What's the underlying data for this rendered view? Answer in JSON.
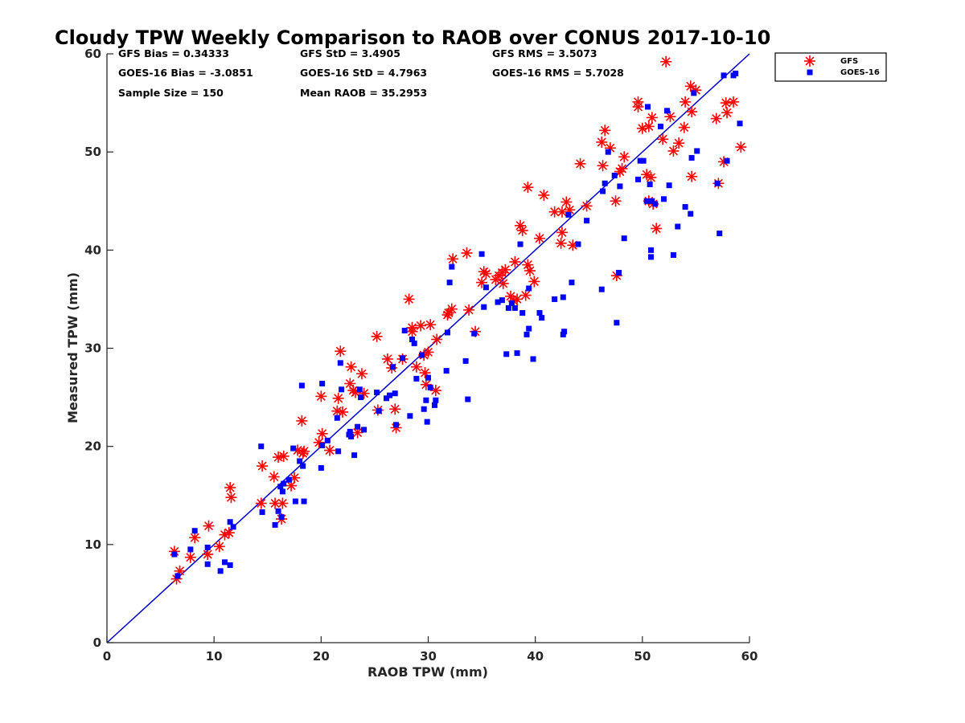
{
  "chart_data": {
    "type": "scatter",
    "title": "Cloudy TPW Weekly Comparison to RAOB over CONUS 2017-10-10",
    "xlabel": "RAOB TPW (mm)",
    "ylabel": "Measured TPW (mm)",
    "xlim": [
      0,
      60
    ],
    "ylim": [
      0,
      60
    ],
    "xticks": [
      "0",
      "10",
      "20",
      "30",
      "40",
      "50",
      "60"
    ],
    "yticks": [
      "0",
      "10",
      "20",
      "30",
      "40",
      "50",
      "60"
    ],
    "grid": false,
    "legend_position": "top-right, outside plot",
    "stats": [
      {
        "id": "gfs-bias",
        "text": "GFS Bias = 0.34333"
      },
      {
        "id": "gfs-std",
        "text": "GFS StD = 3.4905"
      },
      {
        "id": "gfs-rms",
        "text": "GFS RMS = 3.5073"
      },
      {
        "id": "goes-bias",
        "text": "GOES-16 Bias = -3.0851"
      },
      {
        "id": "goes-std",
        "text": "GOES-16 StD = 4.7963"
      },
      {
        "id": "goes-rms",
        "text": "GOES-16 RMS = 5.7028"
      },
      {
        "id": "sample-size",
        "text": "Sample Size = 150"
      },
      {
        "id": "mean-raob",
        "text": "Mean RAOB = 35.2953"
      }
    ],
    "reference_line": {
      "x": [
        0,
        60
      ],
      "y": [
        0,
        60
      ],
      "color": "#0000cc"
    },
    "series": [
      {
        "name": "GFS",
        "marker": "asterisk",
        "color": "#ff0000",
        "points": [
          [
            6.3,
            9.3
          ],
          [
            6.5,
            6.5
          ],
          [
            6.8,
            7.3
          ],
          [
            7.8,
            8.7
          ],
          [
            8.2,
            10.7
          ],
          [
            9.4,
            9.0
          ],
          [
            9.5,
            11.9
          ],
          [
            10.5,
            9.8
          ],
          [
            11.0,
            11.0
          ],
          [
            11.4,
            11.2
          ],
          [
            11.5,
            15.8
          ],
          [
            11.6,
            14.8
          ],
          [
            14.4,
            14.2
          ],
          [
            14.5,
            18.0
          ],
          [
            15.6,
            16.9
          ],
          [
            15.7,
            14.2
          ],
          [
            16.0,
            18.9
          ],
          [
            16.3,
            12.6
          ],
          [
            16.4,
            14.2
          ],
          [
            16.5,
            19.0
          ],
          [
            17.2,
            16.0
          ],
          [
            17.5,
            16.8
          ],
          [
            17.8,
            19.6
          ],
          [
            18.2,
            22.6
          ],
          [
            18.3,
            19.3
          ],
          [
            18.4,
            19.5
          ],
          [
            19.8,
            20.4
          ],
          [
            20.0,
            25.1
          ],
          [
            20.1,
            21.3
          ],
          [
            20.8,
            19.6
          ],
          [
            21.5,
            23.6
          ],
          [
            21.6,
            24.9
          ],
          [
            21.8,
            29.7
          ],
          [
            22.0,
            23.5
          ],
          [
            22.7,
            26.4
          ],
          [
            22.8,
            28.1
          ],
          [
            23.0,
            25.7
          ],
          [
            23.2,
            25.5
          ],
          [
            23.4,
            21.4
          ],
          [
            23.8,
            27.4
          ],
          [
            24.0,
            25.4
          ],
          [
            25.2,
            31.2
          ],
          [
            25.3,
            23.7
          ],
          [
            26.2,
            28.9
          ],
          [
            26.6,
            28.0
          ],
          [
            26.9,
            23.8
          ],
          [
            27.0,
            21.9
          ],
          [
            27.6,
            28.9
          ],
          [
            28.2,
            35.0
          ],
          [
            28.5,
            31.7
          ],
          [
            28.5,
            32.1
          ],
          [
            28.9,
            28.1
          ],
          [
            29.3,
            32.3
          ],
          [
            29.6,
            29.3
          ],
          [
            29.7,
            27.5
          ],
          [
            29.8,
            26.3
          ],
          [
            30.0,
            29.6
          ],
          [
            30.2,
            32.4
          ],
          [
            30.7,
            25.7
          ],
          [
            30.8,
            30.9
          ],
          [
            31.8,
            33.4
          ],
          [
            31.9,
            33.6
          ],
          [
            32.2,
            34.0
          ],
          [
            32.3,
            39.1
          ],
          [
            33.6,
            39.7
          ],
          [
            33.8,
            33.9
          ],
          [
            34.4,
            31.7
          ],
          [
            35.0,
            36.7
          ],
          [
            35.2,
            37.8
          ],
          [
            35.4,
            37.6
          ],
          [
            36.3,
            37.0
          ],
          [
            36.6,
            37.4
          ],
          [
            36.9,
            37.7
          ],
          [
            37.0,
            36.6
          ],
          [
            37.2,
            38.0
          ],
          [
            37.7,
            35.3
          ],
          [
            38.0,
            34.8
          ],
          [
            38.1,
            38.8
          ],
          [
            38.3,
            35.0
          ],
          [
            38.6,
            42.5
          ],
          [
            38.8,
            42.0
          ],
          [
            39.1,
            35.4
          ],
          [
            39.3,
            46.4
          ],
          [
            39.3,
            38.5
          ],
          [
            39.5,
            37.9
          ],
          [
            39.9,
            36.8
          ],
          [
            40.4,
            41.2
          ],
          [
            40.8,
            45.6
          ],
          [
            41.8,
            43.9
          ],
          [
            42.4,
            40.7
          ],
          [
            42.5,
            43.9
          ],
          [
            42.5,
            41.8
          ],
          [
            42.9,
            44.9
          ],
          [
            43.2,
            44.1
          ],
          [
            43.5,
            40.5
          ],
          [
            44.2,
            48.8
          ],
          [
            44.8,
            44.5
          ],
          [
            46.2,
            51.0
          ],
          [
            46.3,
            48.6
          ],
          [
            46.5,
            52.2
          ],
          [
            47.0,
            50.4
          ],
          [
            47.5,
            45.0
          ],
          [
            47.6,
            37.4
          ],
          [
            47.9,
            48.0
          ],
          [
            48.1,
            48.3
          ],
          [
            48.3,
            49.5
          ],
          [
            49.6,
            55.1
          ],
          [
            49.6,
            54.6
          ],
          [
            50.0,
            52.4
          ],
          [
            50.4,
            47.7
          ],
          [
            50.6,
            45.0
          ],
          [
            50.6,
            52.6
          ],
          [
            50.8,
            47.4
          ],
          [
            50.9,
            53.5
          ],
          [
            51.0,
            44.7
          ],
          [
            51.3,
            42.2
          ],
          [
            51.9,
            51.3
          ],
          [
            52.2,
            59.2
          ],
          [
            52.6,
            53.6
          ],
          [
            52.9,
            50.1
          ],
          [
            53.4,
            50.9
          ],
          [
            53.9,
            52.5
          ],
          [
            54.0,
            55.1
          ],
          [
            54.5,
            56.7
          ],
          [
            54.6,
            54.1
          ],
          [
            54.6,
            47.5
          ],
          [
            55.0,
            56.3
          ],
          [
            56.9,
            53.4
          ],
          [
            57.1,
            46.8
          ],
          [
            57.6,
            49.0
          ],
          [
            57.8,
            55.0
          ],
          [
            57.9,
            54.0
          ],
          [
            58.5,
            55.1
          ],
          [
            59.2,
            50.5
          ]
        ]
      },
      {
        "name": "GOES-16",
        "marker": "square",
        "color": "#0000ff",
        "points": [
          [
            6.3,
            9.0
          ],
          [
            6.6,
            6.8
          ],
          [
            7.8,
            9.5
          ],
          [
            8.2,
            11.4
          ],
          [
            9.4,
            9.7
          ],
          [
            9.4,
            8.0
          ],
          [
            10.6,
            7.3
          ],
          [
            11.0,
            8.2
          ],
          [
            11.5,
            7.9
          ],
          [
            11.5,
            12.3
          ],
          [
            11.8,
            11.8
          ],
          [
            14.4,
            20.0
          ],
          [
            14.5,
            13.3
          ],
          [
            15.7,
            12.0
          ],
          [
            16.0,
            13.4
          ],
          [
            16.2,
            15.9
          ],
          [
            16.3,
            12.8
          ],
          [
            16.4,
            15.4
          ],
          [
            16.5,
            16.2
          ],
          [
            17.0,
            16.6
          ],
          [
            17.4,
            19.8
          ],
          [
            17.6,
            14.4
          ],
          [
            18.0,
            18.5
          ],
          [
            18.2,
            26.2
          ],
          [
            18.3,
            18.0
          ],
          [
            18.4,
            14.4
          ],
          [
            20.0,
            17.8
          ],
          [
            20.1,
            26.4
          ],
          [
            20.1,
            20.1
          ],
          [
            20.6,
            20.6
          ],
          [
            21.5,
            22.9
          ],
          [
            21.6,
            19.5
          ],
          [
            21.8,
            28.5
          ],
          [
            21.9,
            25.8
          ],
          [
            22.6,
            21.2
          ],
          [
            22.7,
            21.5
          ],
          [
            22.8,
            21.0
          ],
          [
            23.1,
            19.1
          ],
          [
            23.4,
            22.0
          ],
          [
            23.6,
            25.8
          ],
          [
            23.7,
            25.0
          ],
          [
            24.0,
            21.7
          ],
          [
            25.2,
            25.5
          ],
          [
            25.4,
            23.6
          ],
          [
            26.1,
            24.9
          ],
          [
            26.4,
            25.2
          ],
          [
            26.7,
            28.1
          ],
          [
            26.9,
            25.4
          ],
          [
            27.0,
            22.2
          ],
          [
            27.6,
            29.0
          ],
          [
            27.8,
            31.8
          ],
          [
            28.3,
            23.1
          ],
          [
            28.5,
            30.9
          ],
          [
            28.7,
            30.5
          ],
          [
            28.9,
            26.9
          ],
          [
            29.4,
            29.3
          ],
          [
            29.6,
            23.8
          ],
          [
            29.8,
            24.7
          ],
          [
            29.9,
            22.5
          ],
          [
            30.0,
            27.0
          ],
          [
            30.2,
            26.0
          ],
          [
            30.6,
            24.2
          ],
          [
            30.7,
            24.7
          ],
          [
            31.7,
            27.7
          ],
          [
            31.8,
            31.6
          ],
          [
            32.0,
            36.7
          ],
          [
            32.2,
            38.3
          ],
          [
            33.5,
            28.7
          ],
          [
            33.7,
            24.8
          ],
          [
            34.3,
            31.5
          ],
          [
            35.0,
            39.6
          ],
          [
            35.2,
            34.2
          ],
          [
            35.4,
            36.2
          ],
          [
            36.5,
            34.7
          ],
          [
            36.9,
            34.9
          ],
          [
            37.3,
            29.4
          ],
          [
            37.5,
            34.1
          ],
          [
            37.8,
            34.6
          ],
          [
            38.1,
            34.1
          ],
          [
            38.3,
            29.5
          ],
          [
            38.6,
            40.6
          ],
          [
            38.8,
            33.6
          ],
          [
            39.2,
            31.4
          ],
          [
            39.4,
            32.0
          ],
          [
            39.4,
            36.1
          ],
          [
            39.8,
            28.9
          ],
          [
            40.4,
            33.6
          ],
          [
            40.6,
            33.1
          ],
          [
            41.8,
            35.0
          ],
          [
            42.6,
            35.2
          ],
          [
            42.6,
            31.4
          ],
          [
            42.7,
            31.7
          ],
          [
            43.1,
            43.6
          ],
          [
            43.4,
            36.7
          ],
          [
            44.0,
            40.6
          ],
          [
            44.8,
            43.0
          ],
          [
            46.2,
            36.0
          ],
          [
            46.3,
            46.0
          ],
          [
            46.5,
            46.8
          ],
          [
            46.8,
            50.0
          ],
          [
            47.4,
            47.6
          ],
          [
            47.6,
            32.6
          ],
          [
            47.8,
            37.7
          ],
          [
            47.9,
            46.5
          ],
          [
            48.3,
            41.2
          ],
          [
            49.6,
            47.2
          ],
          [
            49.8,
            49.1
          ],
          [
            50.1,
            49.1
          ],
          [
            50.4,
            45.0
          ],
          [
            50.5,
            54.6
          ],
          [
            50.7,
            46.7
          ],
          [
            50.8,
            40.0
          ],
          [
            50.8,
            39.3
          ],
          [
            50.9,
            45.0
          ],
          [
            51.2,
            44.7
          ],
          [
            51.7,
            52.6
          ],
          [
            52.0,
            45.2
          ],
          [
            52.3,
            54.2
          ],
          [
            52.5,
            46.6
          ],
          [
            52.9,
            39.5
          ],
          [
            53.3,
            42.4
          ],
          [
            54.0,
            44.4
          ],
          [
            54.5,
            43.7
          ],
          [
            54.6,
            49.4
          ],
          [
            54.8,
            56.0
          ],
          [
            55.1,
            50.1
          ],
          [
            57.0,
            46.8
          ],
          [
            57.2,
            41.7
          ],
          [
            57.6,
            57.8
          ],
          [
            57.9,
            49.1
          ],
          [
            58.5,
            57.8
          ],
          [
            58.7,
            58.0
          ],
          [
            59.1,
            52.9
          ]
        ]
      }
    ]
  }
}
